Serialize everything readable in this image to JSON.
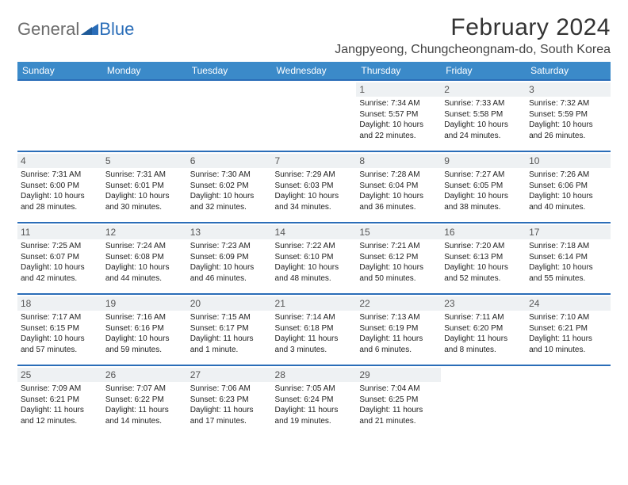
{
  "brand": {
    "text1": "General",
    "text2": "Blue"
  },
  "title": "February 2024",
  "location": "Jangpyeong, Chungcheongnam-do, South Korea",
  "colors": {
    "header_bg": "#3b8ac9",
    "header_text": "#ffffff",
    "row_border": "#2a6db8",
    "daynum_bg": "#eef1f3",
    "body_text": "#222222",
    "logo_gray": "#6b6b6b",
    "logo_blue": "#2a6db8"
  },
  "day_headers": [
    "Sunday",
    "Monday",
    "Tuesday",
    "Wednesday",
    "Thursday",
    "Friday",
    "Saturday"
  ],
  "weeks": [
    [
      null,
      null,
      null,
      null,
      {
        "n": "1",
        "sunrise": "7:34 AM",
        "sunset": "5:57 PM",
        "daylight": "10 hours and 22 minutes."
      },
      {
        "n": "2",
        "sunrise": "7:33 AM",
        "sunset": "5:58 PM",
        "daylight": "10 hours and 24 minutes."
      },
      {
        "n": "3",
        "sunrise": "7:32 AM",
        "sunset": "5:59 PM",
        "daylight": "10 hours and 26 minutes."
      }
    ],
    [
      {
        "n": "4",
        "sunrise": "7:31 AM",
        "sunset": "6:00 PM",
        "daylight": "10 hours and 28 minutes."
      },
      {
        "n": "5",
        "sunrise": "7:31 AM",
        "sunset": "6:01 PM",
        "daylight": "10 hours and 30 minutes."
      },
      {
        "n": "6",
        "sunrise": "7:30 AM",
        "sunset": "6:02 PM",
        "daylight": "10 hours and 32 minutes."
      },
      {
        "n": "7",
        "sunrise": "7:29 AM",
        "sunset": "6:03 PM",
        "daylight": "10 hours and 34 minutes."
      },
      {
        "n": "8",
        "sunrise": "7:28 AM",
        "sunset": "6:04 PM",
        "daylight": "10 hours and 36 minutes."
      },
      {
        "n": "9",
        "sunrise": "7:27 AM",
        "sunset": "6:05 PM",
        "daylight": "10 hours and 38 minutes."
      },
      {
        "n": "10",
        "sunrise": "7:26 AM",
        "sunset": "6:06 PM",
        "daylight": "10 hours and 40 minutes."
      }
    ],
    [
      {
        "n": "11",
        "sunrise": "7:25 AM",
        "sunset": "6:07 PM",
        "daylight": "10 hours and 42 minutes."
      },
      {
        "n": "12",
        "sunrise": "7:24 AM",
        "sunset": "6:08 PM",
        "daylight": "10 hours and 44 minutes."
      },
      {
        "n": "13",
        "sunrise": "7:23 AM",
        "sunset": "6:09 PM",
        "daylight": "10 hours and 46 minutes."
      },
      {
        "n": "14",
        "sunrise": "7:22 AM",
        "sunset": "6:10 PM",
        "daylight": "10 hours and 48 minutes."
      },
      {
        "n": "15",
        "sunrise": "7:21 AM",
        "sunset": "6:12 PM",
        "daylight": "10 hours and 50 minutes."
      },
      {
        "n": "16",
        "sunrise": "7:20 AM",
        "sunset": "6:13 PM",
        "daylight": "10 hours and 52 minutes."
      },
      {
        "n": "17",
        "sunrise": "7:18 AM",
        "sunset": "6:14 PM",
        "daylight": "10 hours and 55 minutes."
      }
    ],
    [
      {
        "n": "18",
        "sunrise": "7:17 AM",
        "sunset": "6:15 PM",
        "daylight": "10 hours and 57 minutes."
      },
      {
        "n": "19",
        "sunrise": "7:16 AM",
        "sunset": "6:16 PM",
        "daylight": "10 hours and 59 minutes."
      },
      {
        "n": "20",
        "sunrise": "7:15 AM",
        "sunset": "6:17 PM",
        "daylight": "11 hours and 1 minute."
      },
      {
        "n": "21",
        "sunrise": "7:14 AM",
        "sunset": "6:18 PM",
        "daylight": "11 hours and 3 minutes."
      },
      {
        "n": "22",
        "sunrise": "7:13 AM",
        "sunset": "6:19 PM",
        "daylight": "11 hours and 6 minutes."
      },
      {
        "n": "23",
        "sunrise": "7:11 AM",
        "sunset": "6:20 PM",
        "daylight": "11 hours and 8 minutes."
      },
      {
        "n": "24",
        "sunrise": "7:10 AM",
        "sunset": "6:21 PM",
        "daylight": "11 hours and 10 minutes."
      }
    ],
    [
      {
        "n": "25",
        "sunrise": "7:09 AM",
        "sunset": "6:21 PM",
        "daylight": "11 hours and 12 minutes."
      },
      {
        "n": "26",
        "sunrise": "7:07 AM",
        "sunset": "6:22 PM",
        "daylight": "11 hours and 14 minutes."
      },
      {
        "n": "27",
        "sunrise": "7:06 AM",
        "sunset": "6:23 PM",
        "daylight": "11 hours and 17 minutes."
      },
      {
        "n": "28",
        "sunrise": "7:05 AM",
        "sunset": "6:24 PM",
        "daylight": "11 hours and 19 minutes."
      },
      {
        "n": "29",
        "sunrise": "7:04 AM",
        "sunset": "6:25 PM",
        "daylight": "11 hours and 21 minutes."
      },
      null,
      null
    ]
  ]
}
